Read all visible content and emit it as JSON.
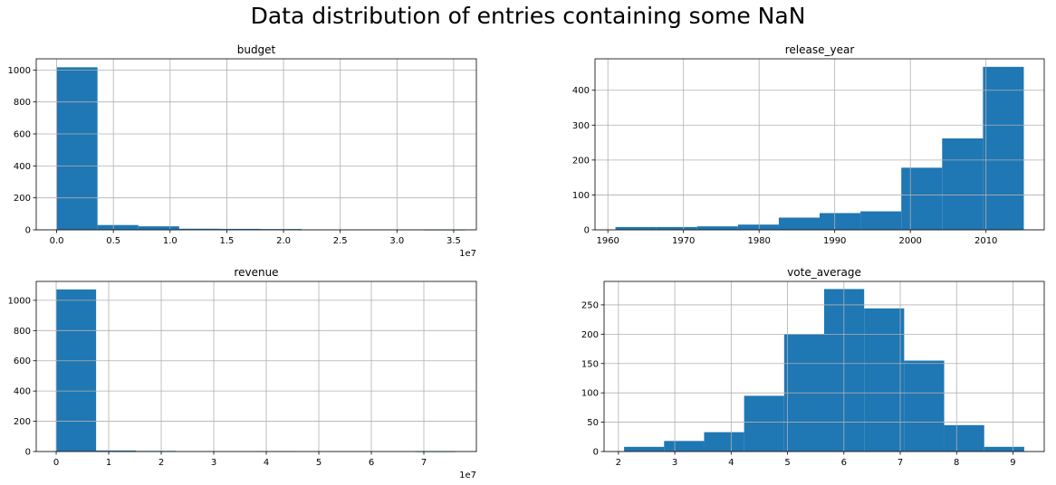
{
  "figure": {
    "title": "Data distribution of entries containing some NaN"
  },
  "chart_data": [
    {
      "type": "bar",
      "title": "budget",
      "bar_color": "#1f77b4",
      "grid": true,
      "xlim": [
        -1800000,
        37000000
      ],
      "ylim": [
        0,
        1070
      ],
      "x_offset_label": "1e7",
      "x_ticks": [
        0,
        5000000,
        10000000,
        15000000,
        20000000,
        25000000,
        30000000,
        35000000
      ],
      "x_tick_labels": [
        "0.0",
        "0.5",
        "1.0",
        "1.5",
        "2.0",
        "2.5",
        "3.0",
        "3.5"
      ],
      "y_ticks": [
        0,
        200,
        400,
        600,
        800,
        1000
      ],
      "y_tick_labels": [
        "0",
        "200",
        "400",
        "600",
        "800",
        "1000"
      ],
      "bin_edges": [
        0,
        3600000,
        7200000,
        10800000,
        14400000,
        18000000,
        21600000,
        25200000,
        28800000,
        32400000,
        36000000
      ],
      "counts": [
        1017,
        30,
        22,
        7,
        6,
        5,
        0,
        0,
        0,
        1
      ]
    },
    {
      "type": "bar",
      "title": "release_year",
      "bar_color": "#1f77b4",
      "grid": true,
      "xlim": [
        1958.3,
        2017.7
      ],
      "ylim": [
        0,
        490
      ],
      "x_ticks": [
        1960,
        1970,
        1980,
        1990,
        2000,
        2010
      ],
      "x_tick_labels": [
        "1960",
        "1970",
        "1980",
        "1990",
        "2000",
        "2010"
      ],
      "y_ticks": [
        0,
        100,
        200,
        300,
        400
      ],
      "y_tick_labels": [
        "0",
        "100",
        "200",
        "300",
        "400"
      ],
      "bin_edges": [
        1961,
        1966.4,
        1971.8,
        1977.2,
        1982.6,
        1988,
        1993.4,
        1998.8,
        2004.2,
        2009.6,
        2015
      ],
      "counts": [
        8,
        8,
        10,
        15,
        35,
        48,
        53,
        178,
        262,
        467
      ]
    },
    {
      "type": "bar",
      "title": "revenue",
      "bar_color": "#1f77b4",
      "grid": true,
      "xlim": [
        -3800000,
        80000000
      ],
      "ylim": [
        0,
        1125
      ],
      "x_offset_label": "1e7",
      "x_ticks": [
        0,
        10000000,
        20000000,
        30000000,
        40000000,
        50000000,
        60000000,
        70000000
      ],
      "x_tick_labels": [
        "0",
        "1",
        "2",
        "3",
        "4",
        "5",
        "6",
        "7"
      ],
      "y_ticks": [
        0,
        200,
        400,
        600,
        800,
        1000
      ],
      "y_tick_labels": [
        "0",
        "200",
        "400",
        "600",
        "800",
        "1000"
      ],
      "bin_edges": [
        0,
        7600000,
        15200000,
        22800000,
        30400000,
        38000000,
        45600000,
        53200000,
        60800000,
        68400000,
        76000000
      ],
      "counts": [
        1072,
        7,
        4,
        0,
        0,
        3,
        0,
        0,
        0,
        1
      ]
    },
    {
      "type": "bar",
      "title": "vote_average",
      "bar_color": "#1f77b4",
      "grid": true,
      "xlim": [
        1.745,
        9.555
      ],
      "ylim": [
        0,
        290
      ],
      "x_ticks": [
        2,
        3,
        4,
        5,
        6,
        7,
        8,
        9
      ],
      "x_tick_labels": [
        "2",
        "3",
        "4",
        "5",
        "6",
        "7",
        "8",
        "9"
      ],
      "y_ticks": [
        0,
        50,
        100,
        150,
        200,
        250
      ],
      "y_tick_labels": [
        "0",
        "50",
        "100",
        "150",
        "200",
        "250"
      ],
      "bin_edges": [
        2.1,
        2.81,
        3.52,
        4.23,
        4.94,
        5.65,
        6.36,
        7.07,
        7.78,
        8.49,
        9.2
      ],
      "counts": [
        8,
        18,
        33,
        95,
        200,
        277,
        244,
        155,
        45,
        8
      ]
    }
  ]
}
